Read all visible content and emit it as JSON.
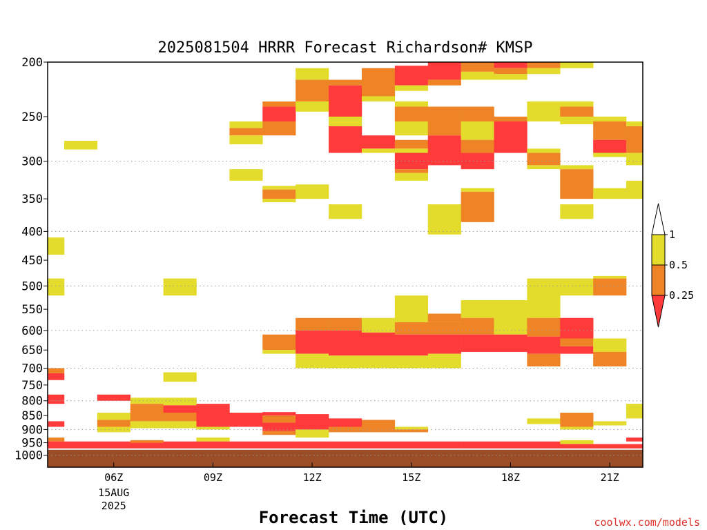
{
  "colors": {
    "lt_0_25": "#ff3a3a",
    "0_25_0_5": "#ef8427",
    "0_5_1": "#e3dc2c",
    "surface": "#9b4d28",
    "gt_1": "#ffffff",
    "grid": "#9a9a9a",
    "credit": "#e0302a"
  },
  "chart_data": {
    "type": "heatmap",
    "title": "2025081504 HRRR Forecast Richardson# KMSP",
    "xlabel": "Forecast Time (UTC)",
    "ylabel": "",
    "credit": "coolwx.com/models",
    "y_scale": "log",
    "y_inverted": true,
    "ylim": [
      200,
      1050
    ],
    "yticks": [
      200,
      250,
      300,
      350,
      400,
      450,
      500,
      550,
      600,
      650,
      700,
      750,
      800,
      850,
      900,
      950,
      1000
    ],
    "grid_levels": [
      300,
      400,
      500,
      600,
      700,
      800,
      900,
      1000
    ],
    "xlim": [
      4,
      22
    ],
    "xticks": [
      {
        "x": 6,
        "label": "06Z",
        "sub1": "15AUG",
        "sub2": "2025"
      },
      {
        "x": 9,
        "label": "09Z",
        "sub1": "",
        "sub2": ""
      },
      {
        "x": 12,
        "label": "12Z",
        "sub1": "",
        "sub2": ""
      },
      {
        "x": 15,
        "label": "15Z",
        "sub1": "",
        "sub2": ""
      },
      {
        "x": 18,
        "label": "18Z",
        "sub1": "",
        "sub2": ""
      },
      {
        "x": 21,
        "label": "21Z",
        "sub1": "",
        "sub2": ""
      }
    ],
    "legend": {
      "position": "right",
      "ticks": [
        "1",
        "0.5",
        "0.25"
      ],
      "levels": [
        {
          "label": "1",
          "color_key": "gt_1"
        },
        {
          "label": "0.5",
          "color_key": "0_5_1"
        },
        {
          "label": "0.25",
          "color_key": "0_25_0_5"
        }
      ]
    },
    "surface_level": 975,
    "columns": [
      {
        "x0": 4.0,
        "x1": 4.5,
        "cells": [
          [
            410,
            440,
            "y"
          ],
          [
            485,
            520,
            "y"
          ],
          [
            700,
            715,
            "o"
          ],
          [
            715,
            735,
            "r"
          ],
          [
            780,
            800,
            "r"
          ],
          [
            800,
            810,
            "r"
          ],
          [
            870,
            890,
            "r"
          ],
          [
            930,
            945,
            "o"
          ],
          [
            945,
            975,
            "r"
          ]
        ]
      },
      {
        "x0": 4.5,
        "x1": 5.5,
        "cells": [
          [
            276,
            286,
            "y"
          ],
          [
            945,
            975,
            "r"
          ]
        ]
      },
      {
        "x0": 5.5,
        "x1": 6.5,
        "cells": [
          [
            780,
            800,
            "r"
          ],
          [
            840,
            865,
            "y"
          ],
          [
            865,
            890,
            "o"
          ],
          [
            890,
            910,
            "y"
          ],
          [
            945,
            975,
            "r"
          ]
        ]
      },
      {
        "x0": 6.5,
        "x1": 7.5,
        "cells": [
          [
            790,
            810,
            "y"
          ],
          [
            810,
            870,
            "o"
          ],
          [
            870,
            895,
            "y"
          ],
          [
            940,
            950,
            "o"
          ],
          [
            950,
            975,
            "r"
          ]
        ]
      },
      {
        "x0": 7.5,
        "x1": 8.5,
        "cells": [
          [
            485,
            520,
            "y"
          ],
          [
            712,
            740,
            "y"
          ],
          [
            790,
            815,
            "y"
          ],
          [
            815,
            840,
            "r"
          ],
          [
            840,
            870,
            "o"
          ],
          [
            870,
            895,
            "y"
          ],
          [
            945,
            975,
            "r"
          ]
        ]
      },
      {
        "x0": 8.5,
        "x1": 9.5,
        "cells": [
          [
            810,
            890,
            "r"
          ],
          [
            890,
            900,
            "y"
          ],
          [
            930,
            945,
            "y"
          ],
          [
            945,
            975,
            "r"
          ]
        ]
      },
      {
        "x0": 9.5,
        "x1": 10.5,
        "cells": [
          [
            255,
            262,
            "y"
          ],
          [
            262,
            270,
            "o"
          ],
          [
            270,
            280,
            "y"
          ],
          [
            310,
            325,
            "y"
          ],
          [
            840,
            890,
            "r"
          ],
          [
            945,
            975,
            "r"
          ]
        ]
      },
      {
        "x0": 10.5,
        "x1": 11.5,
        "cells": [
          [
            235,
            240,
            "o"
          ],
          [
            240,
            255,
            "r"
          ],
          [
            255,
            270,
            "o"
          ],
          [
            332,
            337,
            "y"
          ],
          [
            337,
            350,
            "o"
          ],
          [
            350,
            355,
            "y"
          ],
          [
            610,
            650,
            "o"
          ],
          [
            650,
            660,
            "y"
          ],
          [
            838,
            850,
            "r"
          ],
          [
            850,
            875,
            "o"
          ],
          [
            875,
            905,
            "r"
          ],
          [
            905,
            920,
            "o"
          ],
          [
            945,
            975,
            "r"
          ]
        ]
      },
      {
        "x0": 11.5,
        "x1": 12.5,
        "cells": [
          [
            205,
            215,
            "y"
          ],
          [
            215,
            235,
            "o"
          ],
          [
            235,
            245,
            "y"
          ],
          [
            330,
            350,
            "y"
          ],
          [
            570,
            600,
            "o"
          ],
          [
            600,
            660,
            "r"
          ],
          [
            660,
            700,
            "y"
          ],
          [
            845,
            900,
            "r"
          ],
          [
            900,
            930,
            "y"
          ],
          [
            945,
            975,
            "r"
          ]
        ]
      },
      {
        "x0": 12.5,
        "x1": 13.5,
        "cells": [
          [
            215,
            220,
            "o"
          ],
          [
            220,
            250,
            "r"
          ],
          [
            250,
            260,
            "y"
          ],
          [
            260,
            290,
            "r"
          ],
          [
            358,
            380,
            "y"
          ],
          [
            570,
            600,
            "o"
          ],
          [
            600,
            665,
            "r"
          ],
          [
            665,
            700,
            "y"
          ],
          [
            860,
            890,
            "r"
          ],
          [
            890,
            910,
            "o"
          ],
          [
            945,
            975,
            "r"
          ]
        ]
      },
      {
        "x0": 13.5,
        "x1": 14.5,
        "cells": [
          [
            205,
            230,
            "o"
          ],
          [
            230,
            235,
            "y"
          ],
          [
            270,
            285,
            "r"
          ],
          [
            285,
            290,
            "y"
          ],
          [
            570,
            605,
            "y"
          ],
          [
            605,
            665,
            "r"
          ],
          [
            665,
            700,
            "y"
          ],
          [
            865,
            910,
            "o"
          ],
          [
            945,
            975,
            "r"
          ]
        ]
      },
      {
        "x0": 14.5,
        "x1": 15.5,
        "cells": [
          [
            203,
            220,
            "r"
          ],
          [
            220,
            225,
            "y"
          ],
          [
            235,
            240,
            "y"
          ],
          [
            240,
            255,
            "o"
          ],
          [
            255,
            270,
            "y"
          ],
          [
            275,
            285,
            "o"
          ],
          [
            285,
            290,
            "y"
          ],
          [
            290,
            310,
            "r"
          ],
          [
            310,
            315,
            "o"
          ],
          [
            315,
            325,
            "y"
          ],
          [
            520,
            580,
            "y"
          ],
          [
            580,
            610,
            "o"
          ],
          [
            610,
            665,
            "r"
          ],
          [
            665,
            700,
            "y"
          ],
          [
            890,
            900,
            "y"
          ],
          [
            900,
            910,
            "o"
          ],
          [
            945,
            975,
            "r"
          ]
        ]
      },
      {
        "x0": 15.5,
        "x1": 16.5,
        "cells": [
          [
            200,
            215,
            "r"
          ],
          [
            215,
            220,
            "o"
          ],
          [
            240,
            270,
            "o"
          ],
          [
            270,
            305,
            "r"
          ],
          [
            358,
            405,
            "y"
          ],
          [
            560,
            580,
            "o"
          ],
          [
            580,
            610,
            "o"
          ],
          [
            610,
            660,
            "r"
          ],
          [
            660,
            700,
            "y"
          ],
          [
            945,
            975,
            "r"
          ]
        ]
      },
      {
        "x0": 16.5,
        "x1": 17.5,
        "cells": [
          [
            200,
            208,
            "o"
          ],
          [
            208,
            215,
            "y"
          ],
          [
            240,
            255,
            "o"
          ],
          [
            255,
            275,
            "y"
          ],
          [
            275,
            290,
            "o"
          ],
          [
            290,
            310,
            "r"
          ],
          [
            335,
            340,
            "y"
          ],
          [
            340,
            385,
            "o"
          ],
          [
            530,
            570,
            "y"
          ],
          [
            570,
            610,
            "o"
          ],
          [
            610,
            655,
            "r"
          ],
          [
            945,
            975,
            "r"
          ]
        ]
      },
      {
        "x0": 17.5,
        "x1": 18.5,
        "cells": [
          [
            200,
            205,
            "r"
          ],
          [
            205,
            210,
            "o"
          ],
          [
            210,
            215,
            "y"
          ],
          [
            250,
            255,
            "o"
          ],
          [
            255,
            290,
            "r"
          ],
          [
            530,
            610,
            "y"
          ],
          [
            610,
            655,
            "r"
          ],
          [
            945,
            975,
            "r"
          ]
        ]
      },
      {
        "x0": 18.5,
        "x1": 19.5,
        "cells": [
          [
            200,
            205,
            "o"
          ],
          [
            205,
            210,
            "y"
          ],
          [
            235,
            255,
            "y"
          ],
          [
            285,
            290,
            "y"
          ],
          [
            290,
            305,
            "o"
          ],
          [
            305,
            310,
            "y"
          ],
          [
            485,
            570,
            "y"
          ],
          [
            570,
            615,
            "o"
          ],
          [
            615,
            660,
            "r"
          ],
          [
            660,
            695,
            "o"
          ],
          [
            860,
            880,
            "y"
          ],
          [
            945,
            975,
            "r"
          ]
        ]
      },
      {
        "x0": 19.5,
        "x1": 20.5,
        "cells": [
          [
            200,
            205,
            "y"
          ],
          [
            235,
            240,
            "y"
          ],
          [
            240,
            250,
            "o"
          ],
          [
            250,
            258,
            "y"
          ],
          [
            305,
            310,
            "y"
          ],
          [
            310,
            350,
            "o"
          ],
          [
            358,
            380,
            "y"
          ],
          [
            485,
            520,
            "y"
          ],
          [
            570,
            620,
            "r"
          ],
          [
            620,
            640,
            "o"
          ],
          [
            640,
            660,
            "r"
          ],
          [
            840,
            890,
            "o"
          ],
          [
            890,
            900,
            "y"
          ],
          [
            940,
            955,
            "y"
          ],
          [
            955,
            975,
            "r"
          ]
        ]
      },
      {
        "x0": 20.5,
        "x1": 21.5,
        "cells": [
          [
            250,
            255,
            "y"
          ],
          [
            255,
            275,
            "o"
          ],
          [
            275,
            290,
            "r"
          ],
          [
            290,
            295,
            "y"
          ],
          [
            335,
            350,
            "y"
          ],
          [
            480,
            485,
            "y"
          ],
          [
            485,
            520,
            "o"
          ],
          [
            620,
            655,
            "y"
          ],
          [
            655,
            695,
            "o"
          ],
          [
            870,
            885,
            "y"
          ],
          [
            955,
            975,
            "r"
          ]
        ]
      },
      {
        "x0": 21.5,
        "x1": 22.0,
        "cells": [
          [
            255,
            260,
            "y"
          ],
          [
            260,
            290,
            "o"
          ],
          [
            290,
            305,
            "y"
          ],
          [
            325,
            350,
            "y"
          ],
          [
            810,
            860,
            "y"
          ],
          [
            930,
            945,
            "r"
          ],
          [
            955,
            975,
            "r"
          ]
        ]
      }
    ]
  }
}
